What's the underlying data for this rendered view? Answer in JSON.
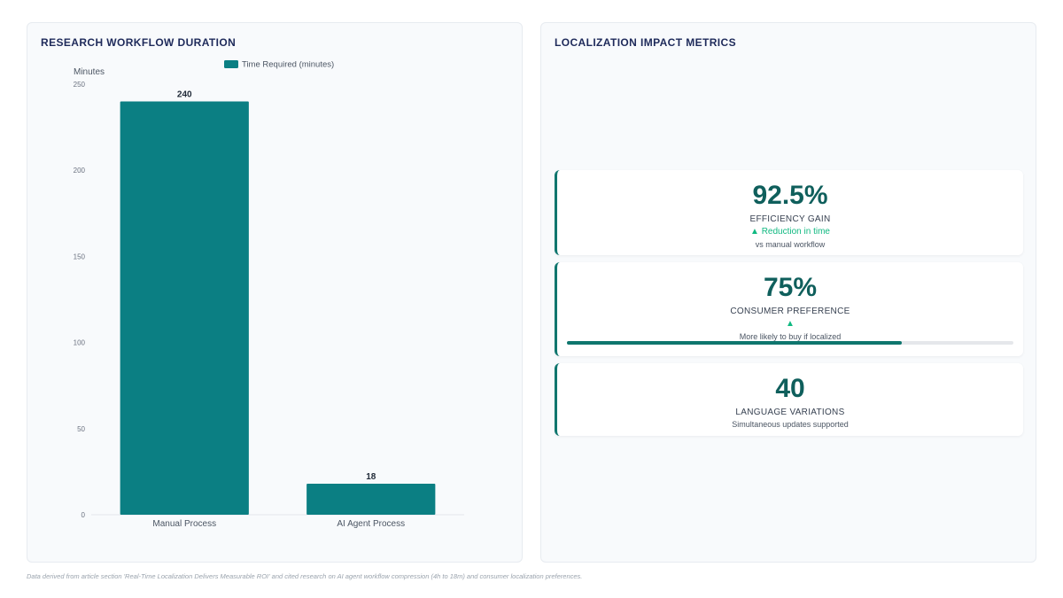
{
  "left_panel": {
    "title": "RESEARCH WORKFLOW DURATION"
  },
  "right_panel": {
    "title": "LOCALIZATION IMPACT METRICS"
  },
  "chart_data": {
    "type": "bar",
    "title": "RESEARCH WORKFLOW DURATION",
    "categories": [
      "Manual Process",
      "AI Agent Process"
    ],
    "series": [
      {
        "name": "Time Required (minutes)",
        "values": [
          240,
          18
        ],
        "color": "#0b7f83"
      }
    ],
    "ylabel": "Minutes",
    "xlabel": "",
    "ylim": [
      0,
      250
    ],
    "yticks": [
      0,
      50,
      100,
      150,
      200,
      250
    ],
    "data_labels": [
      "240",
      "18"
    ],
    "legend_position": "top-center",
    "grid": false
  },
  "metrics": [
    {
      "value": "92.5%",
      "label": "EFFICIENCY GAIN",
      "trend": "▲ Reduction in time",
      "sub": "vs manual workflow"
    },
    {
      "value": "75%",
      "label": "CONSUMER PREFERENCE",
      "trend": "▲",
      "sub": "More likely to buy if localized",
      "progress_percent": 75
    },
    {
      "value": "40",
      "label": "LANGUAGE VARIATIONS",
      "sub": "Simultaneous updates supported"
    }
  ],
  "colors": {
    "accent": "#0f766e",
    "bar": "#0b7f83",
    "trend": "#10b981",
    "title": "#1e2a5a"
  },
  "footnote": "Data derived from article section 'Real-Time Localization Delivers Measurable ROI' and cited research on AI agent workflow compression (4h to 18m) and consumer localization preferences."
}
